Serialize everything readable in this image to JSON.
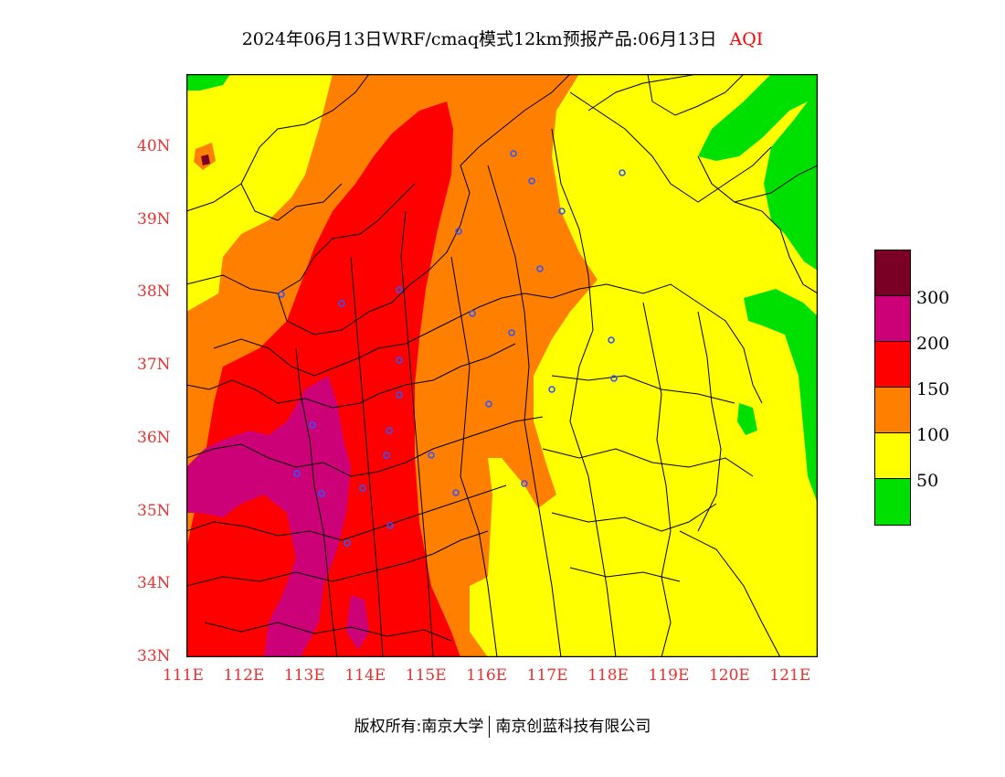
{
  "header": {
    "title": "2024年06月13日WRF/cmaq模式12km预报产品:06月13日",
    "variable": "AQI"
  },
  "map": {
    "lon_range": [
      111,
      121.4
    ],
    "lat_range": [
      33,
      41
    ],
    "x_ticks": [
      "111E",
      "112E",
      "113E",
      "114E",
      "115E",
      "116E",
      "117E",
      "118E",
      "119E",
      "120E",
      "121E"
    ],
    "y_ticks": [
      "33N",
      "34N",
      "35N",
      "36N",
      "37N",
      "38N",
      "39N",
      "40N"
    ],
    "colors": {
      "good": "#00e000",
      "moderate": "#ffff00",
      "sensitive": "#ff7f00",
      "unhealthy": "#ff0000",
      "very_unhealthy": "#cc0077",
      "hazardous": "#7a0025",
      "station": "#3355ff"
    }
  },
  "legend": {
    "labels": [
      "50",
      "100",
      "150",
      "200",
      "300"
    ],
    "colors": [
      "#00e000",
      "#ffff00",
      "#ff7f00",
      "#ff0000",
      "#cc0077",
      "#7a0025"
    ]
  },
  "footer": {
    "left": "版权所有:南京大学",
    "right": "南京创蓝科技有限公司"
  }
}
